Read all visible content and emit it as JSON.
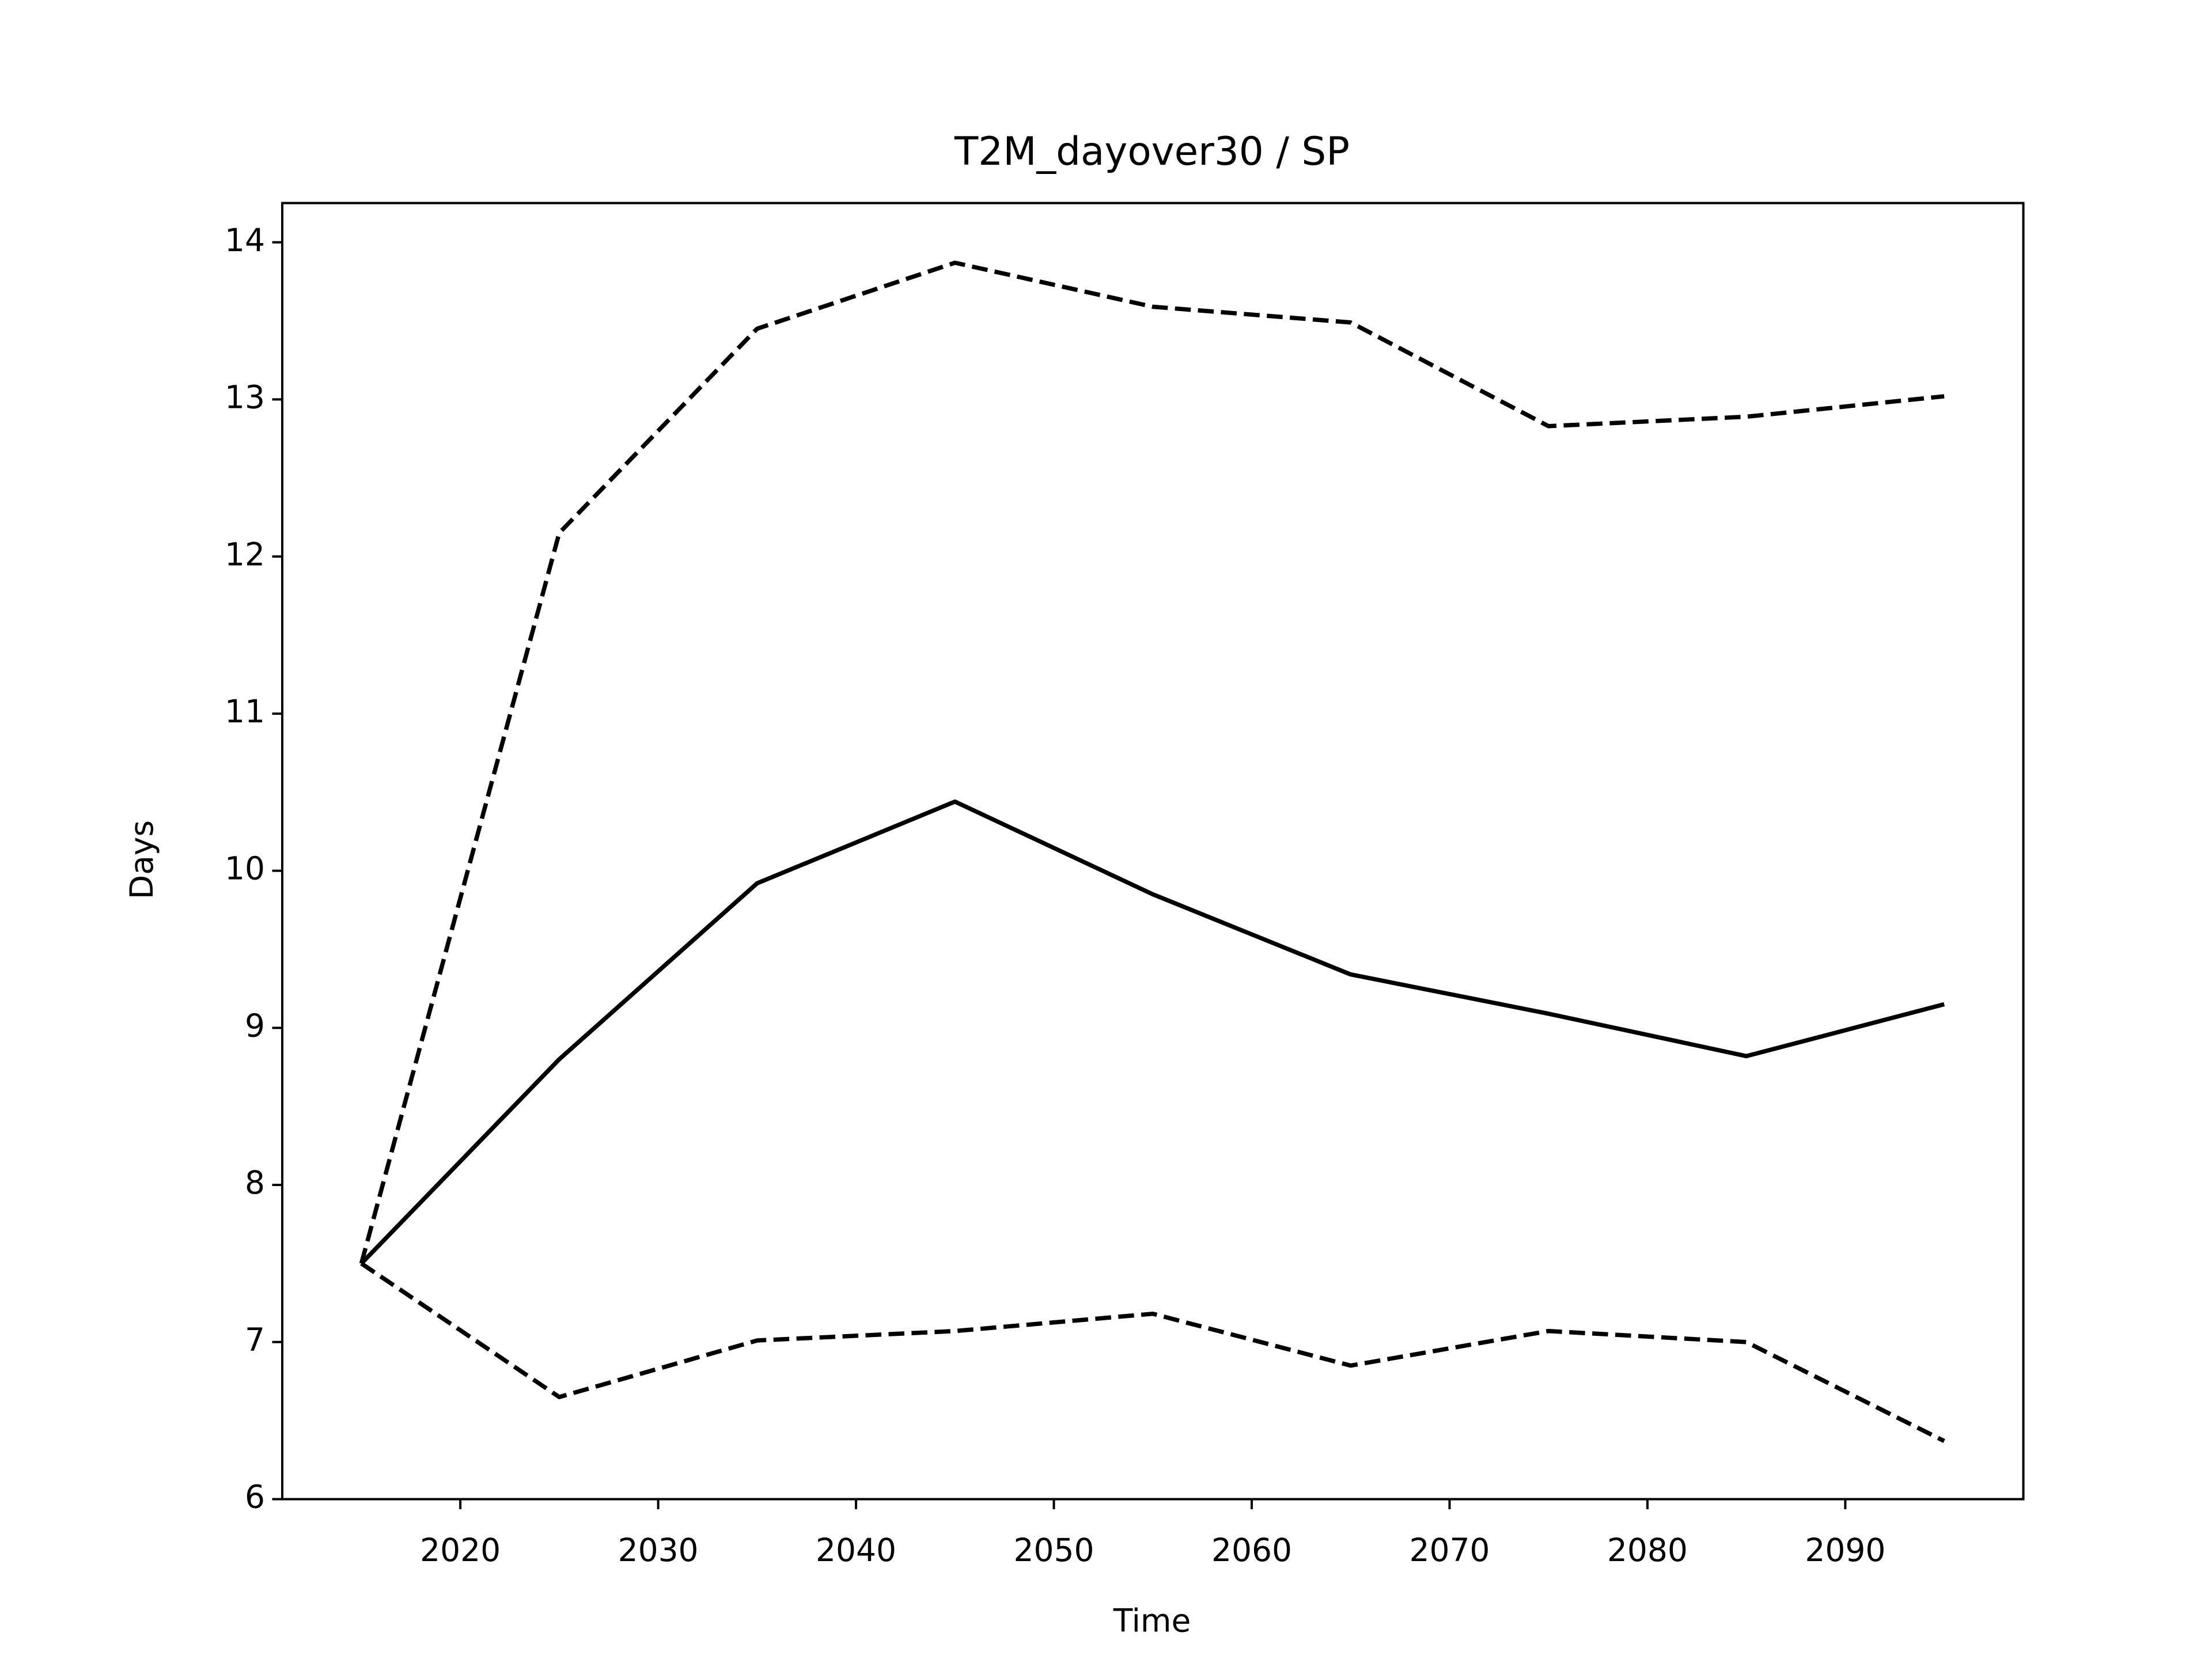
{
  "chart_data": {
    "type": "line",
    "title": "T2M_dayover30 / SP",
    "xlabel": "Time",
    "ylabel": "Days",
    "x": [
      2015,
      2025,
      2035,
      2045,
      2055,
      2065,
      2075,
      2085,
      2095
    ],
    "series": [
      {
        "color": "#000000",
        "linestyle": "solid",
        "values": [
          7.5,
          8.8,
          9.92,
          10.44,
          9.85,
          9.34,
          9.09,
          8.82,
          9.15
        ]
      },
      {
        "color": "#000000",
        "linestyle": "dashed",
        "values": [
          7.5,
          12.15,
          13.45,
          13.87,
          13.59,
          13.49,
          12.83,
          12.89,
          13.02
        ]
      },
      {
        "color": "#000000",
        "linestyle": "dashed",
        "values": [
          7.5,
          6.65,
          7.01,
          7.07,
          7.18,
          6.85,
          7.07,
          7.0,
          6.37
        ]
      }
    ],
    "xlim": [
      2011,
      2099
    ],
    "ylim": [
      6,
      14.25
    ],
    "xticks": [
      2020,
      2030,
      2040,
      2050,
      2060,
      2070,
      2080,
      2090
    ],
    "yticks": [
      6,
      7,
      8,
      9,
      10,
      11,
      12,
      13,
      14
    ],
    "grid": false
  }
}
